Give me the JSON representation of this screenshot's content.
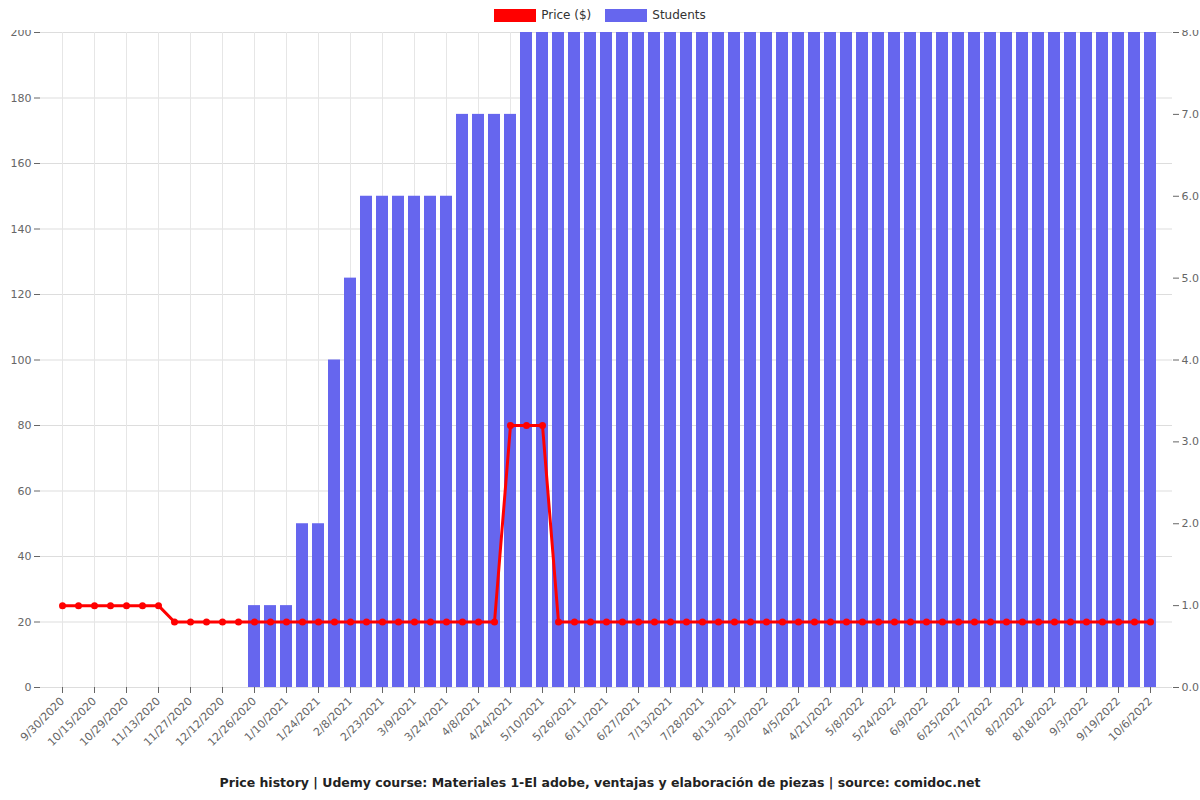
{
  "chart_data": {
    "type": "bar_line",
    "title": "Price history | Udemy course: Materiales 1-El adobe, ventajas y elaboración de piezas | source: comidoc.net",
    "categories": [
      "9/30/2020",
      null,
      "10/15/2020",
      null,
      "10/29/2020",
      null,
      "11/13/2020",
      null,
      "11/27/2020",
      null,
      "12/12/2020",
      null,
      "12/26/2020",
      null,
      "1/10/2021",
      null,
      "1/24/2021",
      null,
      "2/8/2021",
      null,
      "2/23/2021",
      null,
      "3/9/2021",
      null,
      "3/24/2021",
      null,
      "4/8/2021",
      null,
      "4/24/2021",
      null,
      "5/10/2021",
      null,
      "5/26/2021",
      null,
      "6/11/2021",
      null,
      "6/27/2021",
      null,
      "7/13/2021",
      null,
      "7/28/2021",
      null,
      "8/13/2021",
      null,
      "3/20/2022",
      null,
      "4/5/2022",
      null,
      "4/21/2022",
      null,
      "5/8/2022",
      null,
      "5/24/2022",
      null,
      "6/9/2022",
      null,
      "6/25/2022",
      null,
      "7/17/2022",
      null,
      "8/2/2022",
      null,
      "8/18/2022",
      null,
      "9/3/2022",
      null,
      "9/19/2022",
      null,
      "10/6/2022"
    ],
    "series": [
      {
        "name": "Students",
        "type": "bar",
        "axis": "y2",
        "color": "#6666ee",
        "values": [
          0,
          0,
          0,
          0,
          0,
          0,
          0,
          0,
          0,
          0,
          0,
          0,
          1,
          1,
          1,
          2,
          2,
          4,
          5,
          6,
          6,
          6,
          6,
          6,
          6,
          7,
          7,
          7,
          7,
          8,
          8,
          8,
          8,
          8,
          8,
          8,
          8,
          8,
          8,
          8,
          8,
          8,
          8,
          8,
          8,
          8,
          8,
          8,
          8,
          8,
          8,
          8,
          8,
          8,
          8,
          8,
          8,
          8,
          8,
          8,
          8,
          8,
          8,
          8,
          8,
          8,
          8,
          8,
          8
        ]
      },
      {
        "name": "Price ($)",
        "type": "line",
        "color": "#ff0000",
        "marker": "circle",
        "values": [
          25,
          25,
          25,
          25,
          25,
          25,
          25,
          20,
          20,
          20,
          20,
          20,
          20,
          20,
          20,
          20,
          20,
          20,
          20,
          20,
          20,
          20,
          20,
          20,
          20,
          20,
          20,
          20,
          80,
          80,
          80,
          20,
          20,
          20,
          20,
          20,
          20,
          20,
          20,
          20,
          20,
          20,
          20,
          20,
          20,
          20,
          20,
          20,
          20,
          20,
          20,
          20,
          20,
          20,
          20,
          20,
          20,
          20,
          20,
          20,
          20,
          20,
          20,
          20,
          20,
          20,
          20,
          20,
          20
        ]
      }
    ],
    "ylim": [
      0,
      200
    ],
    "yticks": [
      0,
      20,
      40,
      60,
      80,
      100,
      120,
      140,
      160,
      180,
      200
    ],
    "y2lim": [
      0,
      8
    ],
    "y2ticks": [
      0,
      1,
      2,
      3,
      4,
      5,
      6,
      7,
      8
    ],
    "grid": true,
    "legend": "top"
  }
}
